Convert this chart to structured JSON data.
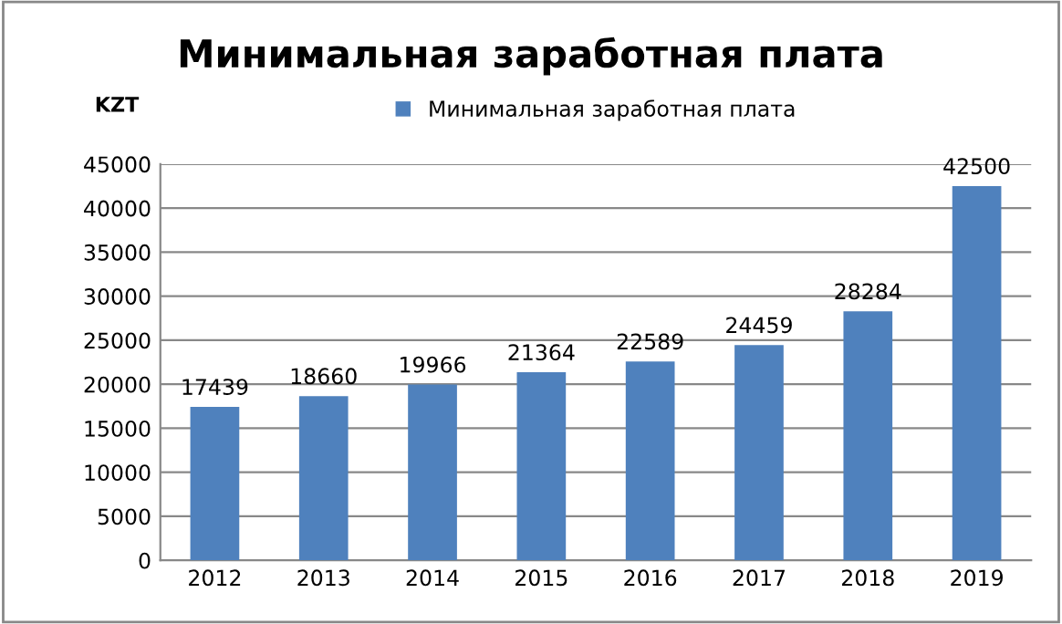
{
  "chart_data": {
    "type": "bar",
    "title": "Минимальная заработная плата",
    "ylabel": "KZT",
    "categories": [
      "2012",
      "2013",
      "2014",
      "2015",
      "2016",
      "2017",
      "2018",
      "2019"
    ],
    "series": [
      {
        "name": "Минимальная заработная плата",
        "color": "#4f81bd",
        "values": [
          17439,
          18660,
          19966,
          21364,
          22589,
          24459,
          28284,
          42500
        ]
      }
    ],
    "ylim": [
      0,
      45000
    ],
    "yticks": [
      0,
      5000,
      10000,
      15000,
      20000,
      25000,
      30000,
      35000,
      40000,
      45000
    ],
    "grid": "y",
    "legend": "top",
    "data_labels": true
  }
}
